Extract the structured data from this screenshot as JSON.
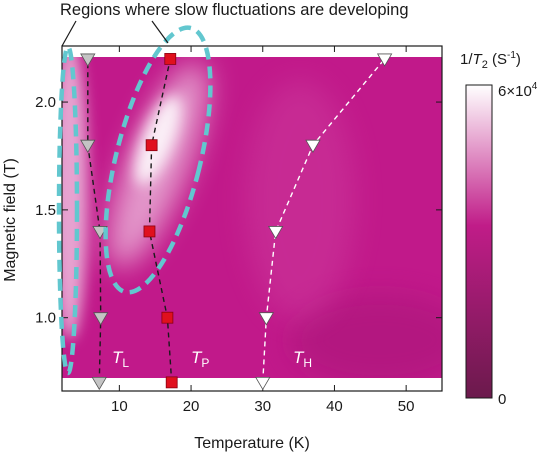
{
  "chart_data": {
    "type": "heatmap",
    "title": "",
    "annotation": "Regions where slow fluctuations are developing",
    "xlabel": "Temperature (K)",
    "ylabel": "Magnetic field (T)",
    "xlim": [
      2,
      55
    ],
    "ylim": [
      0.66,
      2.26
    ],
    "x_ticks": [
      10,
      20,
      30,
      40,
      50
    ],
    "y_ticks": [
      1.0,
      1.5,
      2.0
    ],
    "x_tick_labels": [
      "10",
      "20",
      "30",
      "40",
      "50"
    ],
    "y_tick_labels": [
      "1.0",
      "1.5",
      "2.0"
    ],
    "colorbar": {
      "title_main": "1/",
      "title_T": "T",
      "title_sub": "2",
      "title_unit": " (S",
      "title_unit_sup": "-1",
      "title_close": ")",
      "max_label": "6×10",
      "max_label_sup": "4",
      "min_label": "0",
      "range": [
        0,
        60000
      ],
      "colors": [
        "#6b1a4c",
        "#c01c88",
        "#ffffff"
      ]
    },
    "series": [
      {
        "name": "T_L",
        "label_main": "T",
        "label_sub": "L",
        "marker": "triangle-down",
        "color": "#c4c4c4",
        "line_color": "#1a1a1a",
        "x": [
          7.2,
          7.4,
          7.3,
          5.6,
          5.6
        ],
        "y": [
          0.7,
          1.0,
          1.4,
          1.8,
          2.2
        ]
      },
      {
        "name": "T_P",
        "label_main": "T",
        "label_sub": "P",
        "marker": "square",
        "color": "#e0101e",
        "line_color": "#1a1a1a",
        "x": [
          17.3,
          16.7,
          14.2,
          14.5,
          17.1
        ],
        "y": [
          0.7,
          1.0,
          1.4,
          1.8,
          2.2
        ]
      },
      {
        "name": "T_H",
        "label_main": "T",
        "label_sub": "H",
        "marker": "triangle-down",
        "color": "#ffffff",
        "line_color": "#ffffff",
        "x": [
          30.0,
          30.5,
          31.8,
          37.0,
          47.0
        ],
        "y": [
          0.7,
          1.0,
          1.4,
          1.8,
          2.2
        ]
      }
    ],
    "regions_note_color": "#62c7cf"
  }
}
